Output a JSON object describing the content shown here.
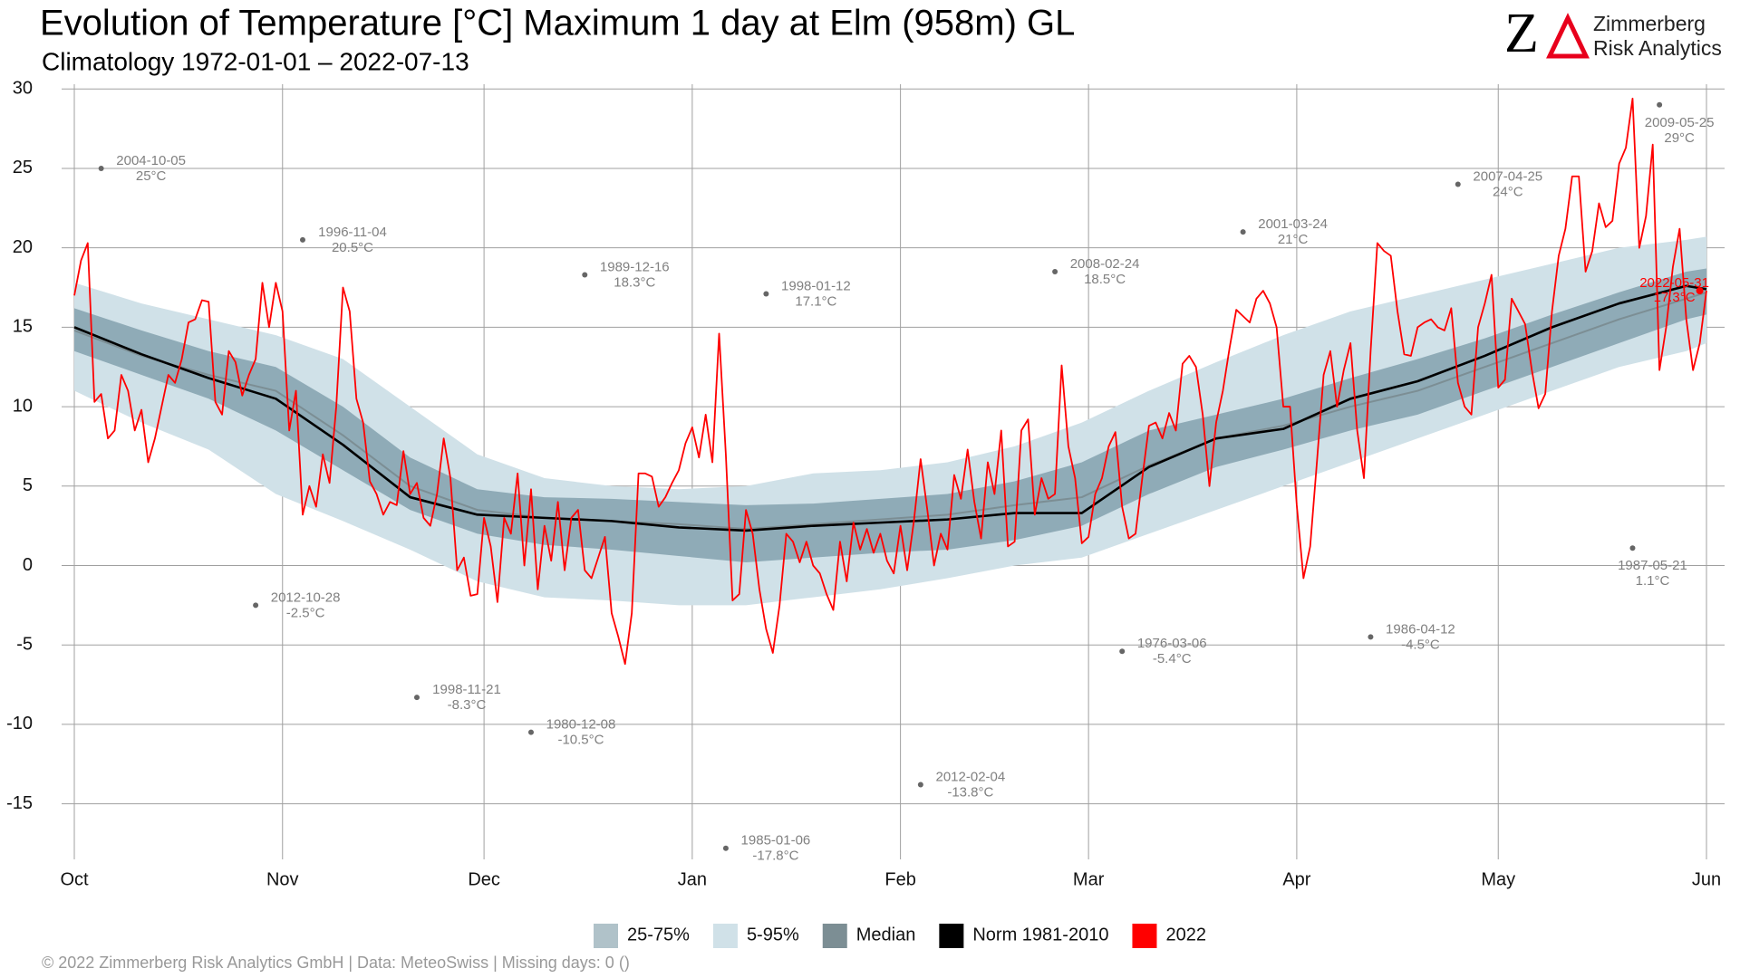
{
  "chart_data": {
    "type": "line",
    "title": "Evolution of Temperature [°C] Maximum 1 day at Elm (958m) GL",
    "subtitle": "Climatology 1972-01-01 – 2022-07-13",
    "logo_letter": "Z",
    "logo_text": [
      "Zimmerberg",
      "Risk Analytics"
    ],
    "footer": "©  2022 Zimmerberg Risk Analytics GmbH | Data: MeteoSwiss | Missing days: 0 ()",
    "xlim": [
      0,
      243
    ],
    "xticks": [
      {
        "value": 0,
        "label": "Oct"
      },
      {
        "value": 31,
        "label": "Nov"
      },
      {
        "value": 61,
        "label": "Dec"
      },
      {
        "value": 92,
        "label": "Jan"
      },
      {
        "value": 123,
        "label": "Feb"
      },
      {
        "value": 151,
        "label": "Mar"
      },
      {
        "value": 182,
        "label": "Apr"
      },
      {
        "value": 212,
        "label": "May"
      },
      {
        "value": 243,
        "label": "Jun"
      }
    ],
    "ylim": [
      -18.5,
      30.3
    ],
    "yticks": [
      -15,
      -10,
      -5,
      0,
      5,
      10,
      15,
      20,
      25,
      30
    ],
    "grid": true,
    "bands": [
      {
        "name": "25-75%",
        "color": "#b0c2c9",
        "x": [
          0,
          10,
          20,
          30,
          40,
          50,
          60,
          70,
          80,
          90,
          100,
          110,
          120,
          130,
          140,
          150,
          160,
          170,
          180,
          190,
          200,
          210,
          220,
          230,
          240,
          243
        ],
        "lower": [
          13.5,
          12.0,
          10.5,
          8.5,
          6.0,
          3.5,
          2.0,
          1.3,
          1.0,
          0.6,
          0.2,
          0.5,
          0.8,
          1.0,
          1.6,
          2.5,
          4.5,
          6.2,
          7.3,
          8.5,
          9.5,
          11.0,
          12.5,
          14.0,
          15.5,
          15.8
        ],
        "upper": [
          16.2,
          14.8,
          13.5,
          12.5,
          10.0,
          6.8,
          4.8,
          4.3,
          4.2,
          4.0,
          3.8,
          3.9,
          4.2,
          4.5,
          5.3,
          6.5,
          8.5,
          9.5,
          10.5,
          11.8,
          13.0,
          14.3,
          15.8,
          17.2,
          18.5,
          18.7
        ]
      },
      {
        "name": "5-95%",
        "color": "#d0e1e8",
        "x": [
          0,
          10,
          20,
          30,
          40,
          50,
          60,
          70,
          80,
          90,
          100,
          110,
          120,
          130,
          140,
          150,
          160,
          170,
          180,
          190,
          200,
          210,
          220,
          230,
          240,
          243
        ],
        "lower": [
          11.0,
          9.0,
          7.3,
          4.5,
          2.8,
          1.0,
          -1.0,
          -2.0,
          -2.2,
          -2.5,
          -2.5,
          -2.0,
          -1.5,
          -0.8,
          0.0,
          0.5,
          2.0,
          3.5,
          5.0,
          6.5,
          8.0,
          9.5,
          11.0,
          12.5,
          13.5,
          14.0
        ],
        "upper": [
          17.8,
          16.5,
          15.5,
          14.5,
          13.0,
          10.0,
          7.0,
          5.5,
          5.0,
          4.8,
          5.0,
          5.8,
          6.0,
          6.5,
          7.5,
          9.0,
          11.0,
          12.8,
          14.5,
          16.0,
          17.0,
          18.0,
          19.0,
          20.0,
          20.5,
          20.7
        ]
      }
    ],
    "series": [
      {
        "name": "Median",
        "color": "#7c8e94",
        "x": [
          0,
          10,
          20,
          30,
          40,
          50,
          60,
          70,
          80,
          90,
          100,
          110,
          120,
          130,
          140,
          150,
          160,
          170,
          180,
          190,
          200,
          210,
          220,
          230,
          240,
          243
        ],
        "values": [
          14.8,
          13.2,
          12.0,
          11.0,
          8.2,
          5.0,
          3.5,
          3.0,
          2.8,
          2.6,
          2.3,
          2.6,
          2.9,
          3.2,
          3.8,
          4.3,
          6.3,
          8.0,
          8.8,
          10.0,
          11.0,
          12.5,
          14.0,
          15.5,
          16.8,
          17.2
        ]
      },
      {
        "name": "Norm 1981-2010",
        "color": "#000000",
        "x": [
          0,
          10,
          20,
          30,
          40,
          50,
          60,
          70,
          80,
          90,
          100,
          110,
          120,
          130,
          140,
          150,
          160,
          170,
          180,
          190,
          200,
          210,
          220,
          230,
          240,
          243
        ],
        "values": [
          15.0,
          13.3,
          11.8,
          10.5,
          7.6,
          4.3,
          3.2,
          3.0,
          2.8,
          2.4,
          2.2,
          2.5,
          2.7,
          2.9,
          3.3,
          3.3,
          6.2,
          8.0,
          8.6,
          10.5,
          11.6,
          13.2,
          15.0,
          16.5,
          17.6,
          17.4
        ]
      },
      {
        "name": "2022",
        "color": "#ff0000",
        "x": [
          0,
          1,
          2,
          3,
          4,
          5,
          6,
          7,
          8,
          9,
          10,
          11,
          12,
          13,
          14,
          15,
          16,
          17,
          18,
          19,
          20,
          21,
          22,
          23,
          24,
          25,
          26,
          27,
          28,
          29,
          30,
          31,
          32,
          33,
          34,
          35,
          36,
          37,
          38,
          39,
          40,
          41,
          42,
          43,
          44,
          45,
          46,
          47,
          48,
          49,
          50,
          51,
          52,
          53,
          54,
          55,
          56,
          57,
          58,
          59,
          60,
          61,
          62,
          63,
          64,
          65,
          66,
          67,
          68,
          69,
          70,
          71,
          72,
          73,
          74,
          75,
          76,
          77,
          78,
          79,
          80,
          81,
          82,
          83,
          84,
          85,
          86,
          87,
          88,
          89,
          90,
          91,
          92,
          93,
          94,
          95,
          96,
          97,
          98,
          99,
          100,
          101,
          102,
          103,
          104,
          105,
          106,
          107,
          108,
          109,
          110,
          111,
          112,
          113,
          114,
          115,
          116,
          117,
          118,
          119,
          120,
          121,
          122,
          123,
          124,
          125,
          126,
          127,
          128,
          129,
          130,
          131,
          132,
          133,
          134,
          135,
          136,
          137,
          138,
          139,
          140,
          141,
          142,
          143,
          144,
          145,
          146,
          147,
          148,
          149,
          150,
          151,
          152,
          153,
          154,
          155,
          156,
          157,
          158,
          159,
          160,
          161,
          162,
          163,
          164,
          165,
          166,
          167,
          168,
          169,
          170,
          171,
          172,
          173,
          174,
          175,
          176,
          177,
          178,
          179,
          180,
          181,
          182,
          183,
          184,
          185,
          186,
          187,
          188,
          189,
          190,
          191,
          192,
          193,
          194,
          195,
          196,
          197,
          198,
          199,
          200,
          201,
          202,
          203,
          204,
          205,
          206,
          207,
          208,
          209,
          210,
          211,
          212,
          213,
          214,
          215,
          216,
          217,
          218,
          219,
          220,
          221,
          222,
          223,
          224,
          225,
          226,
          227,
          228,
          229,
          230,
          231,
          232,
          233,
          234,
          235,
          236,
          237,
          238,
          239,
          240,
          241,
          242,
          243
        ],
        "values": [
          17,
          19.2,
          20.3,
          10.3,
          10.8,
          8,
          8.5,
          12,
          11,
          8.5,
          9.8,
          6.5,
          8,
          10,
          12,
          11.5,
          13,
          15.3,
          15.5,
          16.7,
          16.6,
          10.3,
          9.5,
          13.5,
          12.8,
          10.7,
          12,
          13,
          17.8,
          15,
          17.8,
          16,
          8.5,
          11,
          3.2,
          5,
          3.7,
          7,
          5.2,
          10,
          17.5,
          16,
          10.5,
          9,
          5.3,
          4.5,
          3.2,
          4,
          3.8,
          7.2,
          4.5,
          5.2,
          3,
          2.5,
          4.5,
          8,
          5.5,
          -0.3,
          0.5,
          -1.9,
          -1.8,
          3,
          1.2,
          -2.3,
          3,
          2,
          5.8,
          0,
          4.8,
          -1.5,
          2.5,
          0.3,
          4,
          -0.3,
          3,
          3.5,
          -0.3,
          -0.8,
          0.5,
          1.8,
          -3,
          -4.5,
          -6.2,
          -3,
          5.8,
          5.8,
          5.6,
          3.7,
          4.3,
          5.2,
          6,
          7.7,
          8.7,
          6.8,
          9.5,
          6.5,
          14.6,
          7,
          -2.2,
          -1.8,
          3.5,
          2,
          -1.5,
          -4,
          -5.5,
          -2.5,
          2,
          1.5,
          0.2,
          1.5,
          0,
          -0.5,
          -1.8,
          -2.8,
          1.5,
          -1,
          2.7,
          1,
          2.3,
          0.8,
          2,
          0.3,
          -0.5,
          2.5,
          -0.3,
          2.8,
          6.7,
          3.5,
          0,
          2,
          1,
          5.7,
          4.2,
          7.3,
          4,
          1.7,
          6.5,
          4.5,
          8.5,
          1.2,
          1.5,
          8.5,
          9.2,
          3.2,
          5.5,
          4.2,
          4.5,
          12.6,
          7.5,
          5.5,
          1.4,
          1.8,
          4.5,
          5.5,
          7.5,
          8.4,
          3.7,
          1.7,
          2,
          5.5,
          8.8,
          9,
          8,
          9.6,
          8.5,
          12.7,
          13.2,
          12.5,
          9.5,
          5,
          9,
          11,
          13.7,
          16.1,
          15.7,
          15.3,
          16.8,
          17.3,
          16.5,
          15,
          10,
          10,
          3.8,
          -0.8,
          1.2,
          6.5,
          12,
          13.5,
          10,
          12.3,
          14,
          8.5,
          5.5,
          13.5,
          20.3,
          19.8,
          19.5,
          16,
          13.3,
          13.2,
          15,
          15.3,
          15.5,
          15,
          14.8,
          16.2,
          11.5,
          10,
          9.5,
          15,
          16.5,
          18.3,
          11.2,
          11.7,
          16.8,
          16,
          15.2,
          12.3,
          9.9,
          10.8,
          16,
          19.5,
          21.2,
          24.5,
          24.5,
          18.5,
          19.8,
          22.8,
          21.3,
          21.7,
          25.3,
          26.3,
          29.4,
          20,
          22,
          26.5,
          12.3,
          15,
          18.8,
          21.2,
          15.5,
          12.3,
          14,
          17.3
        ]
      }
    ],
    "annotation_color": "#808080",
    "annotations": [
      {
        "date": "2004-10-05",
        "label": "25°C",
        "x": 4,
        "y": 25
      },
      {
        "date": "2012-10-28",
        "label": "-2.5°C",
        "x": 27,
        "y": -2.5
      },
      {
        "date": "1996-11-04",
        "label": "20.5°C",
        "x": 34,
        "y": 20.5
      },
      {
        "date": "1998-11-21",
        "label": "-8.3°C",
        "x": 51,
        "y": -8.3
      },
      {
        "date": "1980-12-08",
        "label": "-10.5°C",
        "x": 68,
        "y": -10.5
      },
      {
        "date": "1989-12-16",
        "label": "18.3°C",
        "x": 76,
        "y": 18.3
      },
      {
        "date": "1985-01-06",
        "label": "-17.8°C",
        "x": 97,
        "y": -17.8
      },
      {
        "date": "1998-01-12",
        "label": "17.1°C",
        "x": 103,
        "y": 17.1
      },
      {
        "date": "2012-02-04",
        "label": "-13.8°C",
        "x": 126,
        "y": -13.8
      },
      {
        "date": "2008-02-24",
        "label": "18.5°C",
        "x": 146,
        "y": 18.5
      },
      {
        "date": "1976-03-06",
        "label": "-5.4°C",
        "x": 156,
        "y": -5.4
      },
      {
        "date": "2001-03-24",
        "label": "21°C",
        "x": 174,
        "y": 21
      },
      {
        "date": "1986-04-12",
        "label": "-4.5°C",
        "x": 193,
        "y": -4.5
      },
      {
        "date": "2007-04-25",
        "label": "24°C",
        "x": 206,
        "y": 24
      },
      {
        "date": "1987-05-21",
        "label": "1.1°C",
        "x": 232,
        "y": 1.1
      },
      {
        "date": "2009-05-25",
        "label": "29°C",
        "x": 236,
        "y": 29
      },
      {
        "date": "2022-05-31",
        "label": "17.3°C",
        "x": 242,
        "y": 17.3,
        "color": "#ff0000"
      }
    ]
  }
}
